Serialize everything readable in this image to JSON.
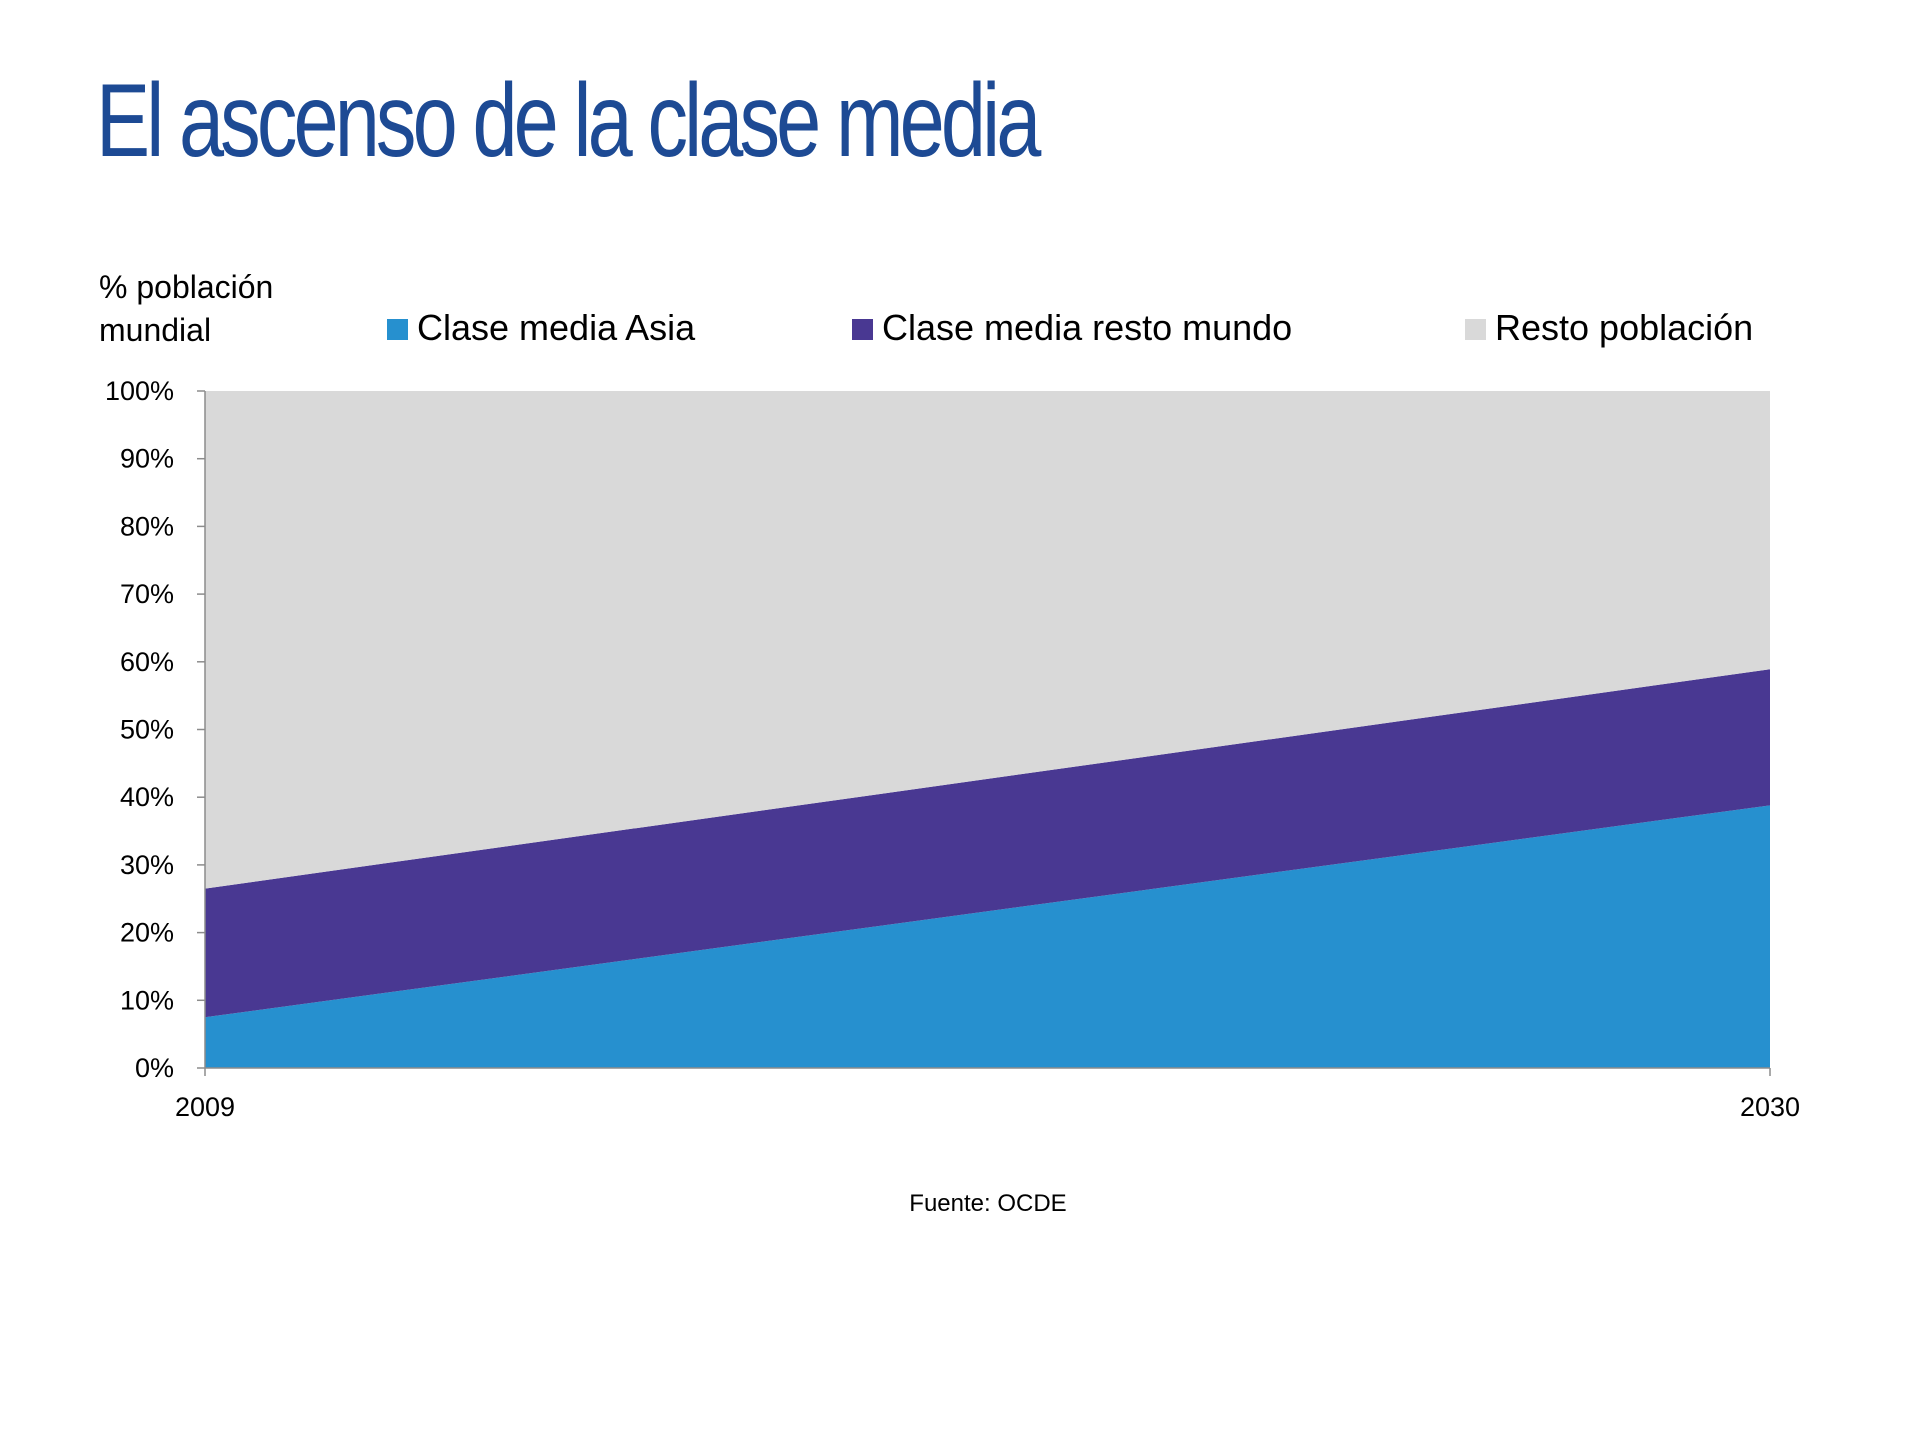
{
  "title": "El ascenso de la clase media",
  "source_note": "Fuente: OCDE",
  "chart_data": {
    "type": "area",
    "stacked": true,
    "x": [
      "2009",
      "2030"
    ],
    "series": [
      {
        "name": "Clase media Asia",
        "values": [
          7.5,
          38.8
        ],
        "color": "#2690cf"
      },
      {
        "name": "Clase media resto mundo",
        "values": [
          19,
          20.1
        ],
        "color": "#493892"
      },
      {
        "name": "Resto población",
        "values": [
          73.5,
          41.1
        ],
        "color": "#d9d9d9"
      }
    ],
    "ylabel_lines": [
      "% población",
      "mundial"
    ],
    "ylim": [
      0,
      100
    ],
    "yticks": [
      "0%",
      "10%",
      "20%",
      "30%",
      "40%",
      "50%",
      "60%",
      "70%",
      "80%",
      "90%",
      "100%"
    ],
    "legend_position": "top",
    "grid": false
  }
}
